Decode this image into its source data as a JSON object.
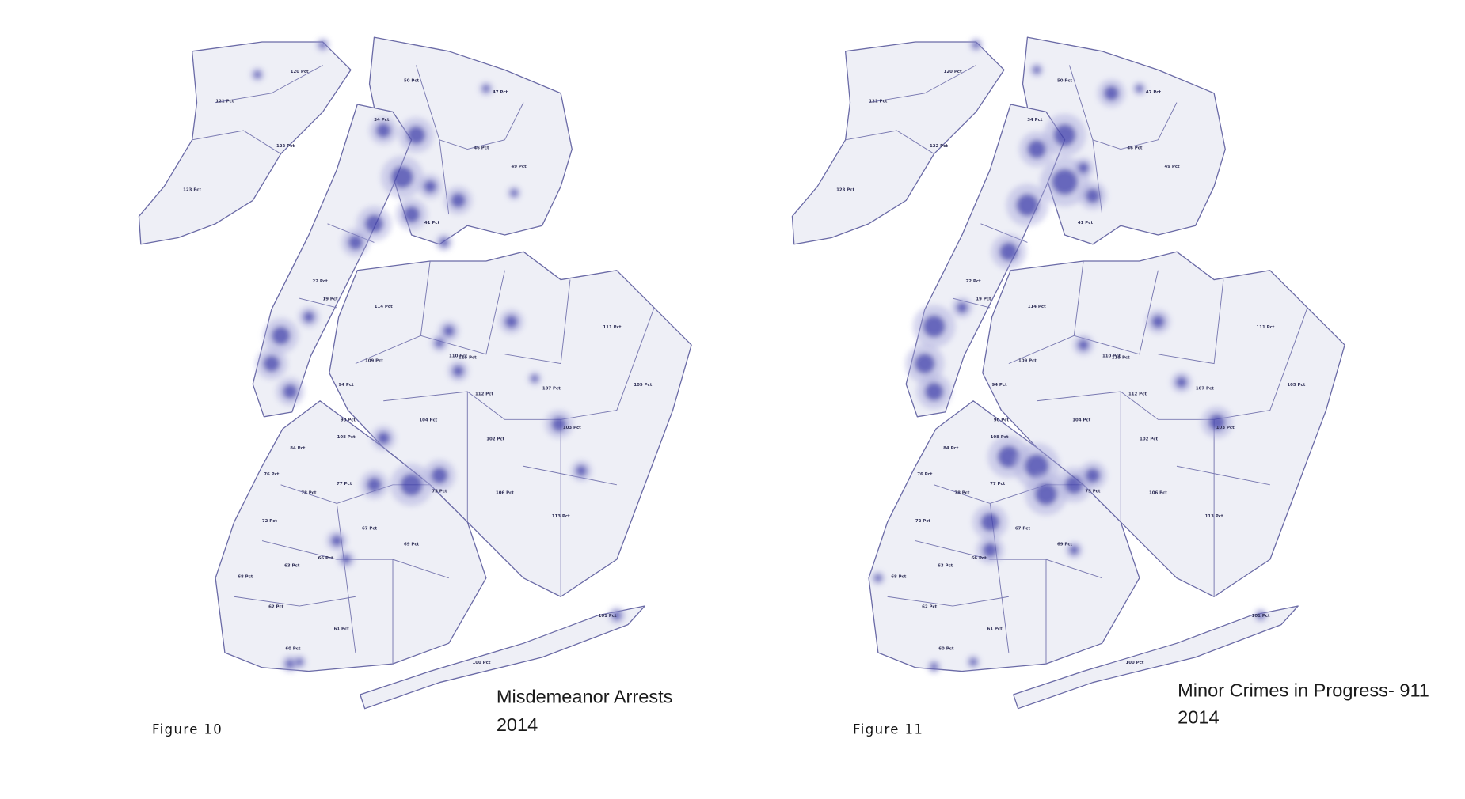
{
  "maps": [
    {
      "figure": "Figure 10",
      "title": [
        "Misdemeanor Arrests",
        "2014"
      ],
      "precinct_labels": [
        "120 Pct",
        "121 Pct",
        "122 Pct",
        "123 Pct",
        "50 Pct",
        "47 Pct",
        "34 Pct",
        "46 Pct",
        "49 Pct",
        "41 Pct",
        "114 Pct",
        "109 Pct",
        "111 Pct",
        "110 Pct",
        "115 Pct",
        "108 Pct",
        "105 Pct",
        "107 Pct",
        "112 Pct",
        "104 Pct",
        "103 Pct",
        "102 Pct",
        "106 Pct",
        "113 Pct",
        "94 Pct",
        "90 Pct",
        "84 Pct",
        "76 Pct",
        "78 Pct",
        "77 Pct",
        "72 Pct",
        "67 Pct",
        "69 Pct",
        "66 Pct",
        "63 Pct",
        "61 Pct",
        "60 Pct",
        "62 Pct",
        "68 Pct",
        "101 Pct",
        "100 Pct",
        "75 Pct",
        "19 Pct",
        "22 Pct"
      ]
    },
    {
      "figure": "Figure 11",
      "title": [
        "Minor Crimes in Progress- 911",
        "2014"
      ],
      "precinct_labels": [
        "120 Pct",
        "121 Pct",
        "122 Pct",
        "123 Pct",
        "50 Pct",
        "47 Pct",
        "34 Pct",
        "46 Pct",
        "49 Pct",
        "41 Pct",
        "114 Pct",
        "109 Pct",
        "111 Pct",
        "110 Pct",
        "115 Pct",
        "108 Pct",
        "105 Pct",
        "107 Pct",
        "112 Pct",
        "104 Pct",
        "103 Pct",
        "102 Pct",
        "106 Pct",
        "113 Pct",
        "94 Pct",
        "90 Pct",
        "84 Pct",
        "76 Pct",
        "78 Pct",
        "77 Pct",
        "72 Pct",
        "67 Pct",
        "69 Pct",
        "66 Pct",
        "63 Pct",
        "61 Pct",
        "60 Pct",
        "62 Pct",
        "68 Pct",
        "101 Pct",
        "100 Pct",
        "75 Pct",
        "19 Pct",
        "22 Pct"
      ]
    }
  ]
}
